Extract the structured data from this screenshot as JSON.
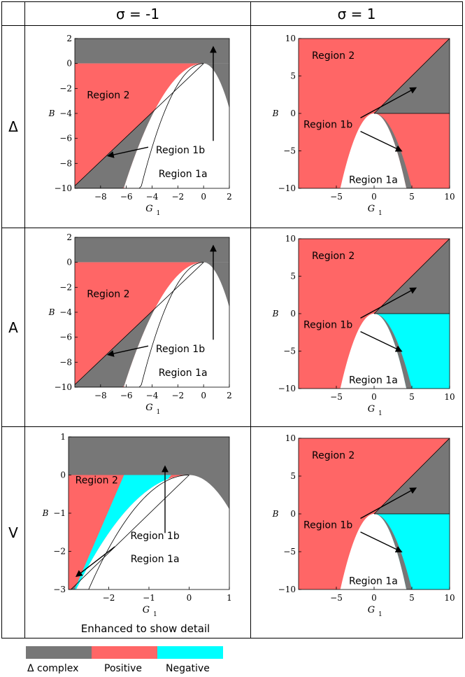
{
  "header": {
    "corner": "",
    "col1": "σ = -1",
    "col2": "σ = 1"
  },
  "rows": [
    {
      "label": "Δ"
    },
    {
      "label": "A"
    },
    {
      "label": "V"
    }
  ],
  "note": "Enhanced to show detail",
  "colors": {
    "complex": "#777777",
    "positive": "#ff6666",
    "negative": "#00ffff",
    "white": "#ffffff"
  },
  "legend": [
    {
      "label": "Δ complex",
      "color": "#777777"
    },
    {
      "label": "Positive",
      "color": "#ff6666"
    },
    {
      "label": "Negative",
      "color": "#00ffff"
    }
  ],
  "chart_data": [
    {
      "type": "area",
      "row": "Δ",
      "sigma": -1,
      "xlabel": "G",
      "xlabel_sub": "1",
      "ylabel": "B",
      "xlim": [
        -10,
        2
      ],
      "ylim": [
        -10,
        2
      ],
      "xticks": [
        -8,
        -6,
        -4,
        -2,
        0,
        2
      ],
      "yticks": [
        2,
        0,
        -2,
        -4,
        -6,
        -8,
        -10
      ],
      "regions": [
        "Region 2",
        "Region 1b",
        "Region 1a"
      ],
      "negative_band": false
    },
    {
      "type": "area",
      "row": "Δ",
      "sigma": 1,
      "xlabel": "G",
      "xlabel_sub": "1",
      "ylabel": "B",
      "xlim": [
        -10,
        10
      ],
      "ylim": [
        -10,
        10
      ],
      "xticks": [
        -5,
        0,
        5,
        10
      ],
      "yticks": [
        10,
        5,
        0,
        -5,
        -10
      ],
      "regions": [
        "Region 2",
        "Region 1b",
        "Region 1a"
      ],
      "lower_right": "positive"
    },
    {
      "type": "area",
      "row": "A",
      "sigma": -1,
      "xlabel": "G",
      "xlabel_sub": "1",
      "ylabel": "B",
      "xlim": [
        -10,
        2
      ],
      "ylim": [
        -10,
        2
      ],
      "xticks": [
        -8,
        -6,
        -4,
        -2,
        0,
        2
      ],
      "yticks": [
        2,
        0,
        -2,
        -4,
        -6,
        -8,
        -10
      ],
      "regions": [
        "Region 2",
        "Region 1b",
        "Region 1a"
      ],
      "negative_band": false
    },
    {
      "type": "area",
      "row": "A",
      "sigma": 1,
      "xlabel": "G",
      "xlabel_sub": "1",
      "ylabel": "B",
      "xlim": [
        -10,
        10
      ],
      "ylim": [
        -10,
        10
      ],
      "xticks": [
        -5,
        0,
        5,
        10
      ],
      "yticks": [
        10,
        5,
        0,
        -5,
        -10
      ],
      "regions": [
        "Region 2",
        "Region 1b",
        "Region 1a"
      ],
      "lower_right": "negative"
    },
    {
      "type": "area",
      "row": "V",
      "sigma": -1,
      "xlabel": "G",
      "xlabel_sub": "1",
      "ylabel": "B",
      "xlim": [
        -3,
        1
      ],
      "ylim": [
        -3,
        1
      ],
      "xticks": [
        -2,
        -1,
        0,
        1
      ],
      "yticks": [
        1,
        0,
        -1,
        -2,
        -3
      ],
      "regions": [
        "Region 2",
        "Region 1b",
        "Region 1a"
      ],
      "negative_band": true
    },
    {
      "type": "area",
      "row": "V",
      "sigma": 1,
      "xlabel": "G",
      "xlabel_sub": "1",
      "ylabel": "B",
      "xlim": [
        -10,
        10
      ],
      "ylim": [
        -10,
        10
      ],
      "xticks": [
        -5,
        0,
        5,
        10
      ],
      "yticks": [
        10,
        5,
        0,
        -5,
        -10
      ],
      "regions": [
        "Region 2",
        "Region 1b",
        "Region 1a"
      ],
      "lower_right": "negative"
    }
  ]
}
